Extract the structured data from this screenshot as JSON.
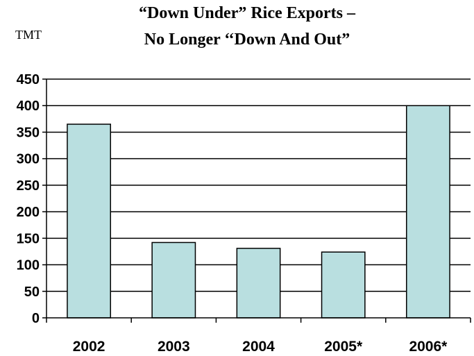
{
  "chart_data": {
    "type": "bar",
    "title_lines": [
      "“Down Under” Rice Exports –",
      "No Longer ‘‘Down And Out”"
    ],
    "unit_label": "TMT",
    "categories": [
      "2002",
      "2003",
      "2004",
      "2005*",
      "2006*"
    ],
    "values": [
      365,
      142,
      131,
      124,
      400
    ],
    "ylim": [
      0,
      450
    ],
    "y_ticks": [
      0,
      50,
      100,
      150,
      200,
      250,
      300,
      350,
      400,
      450
    ],
    "grid": true,
    "bar_color": "#b9dfe0",
    "bar_edge_color": "#000000"
  }
}
